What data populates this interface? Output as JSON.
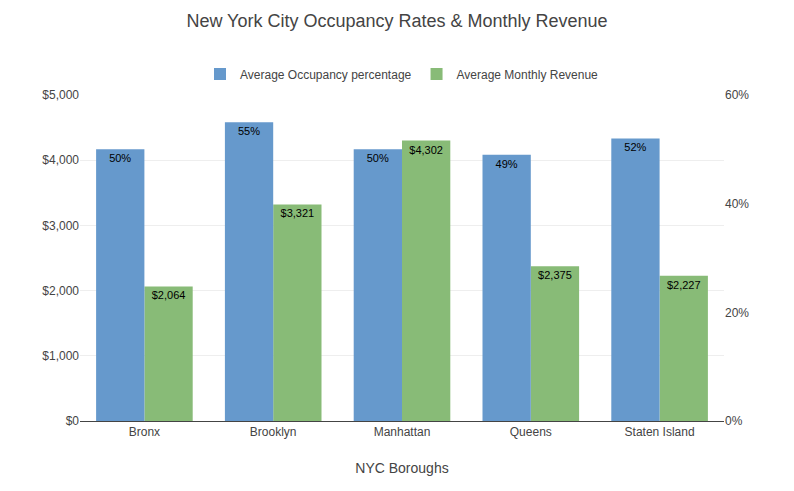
{
  "chart_data": {
    "type": "bar",
    "title": "New York City Occupancy Rates & Monthly Revenue",
    "xlabel": "NYC Boroughs",
    "categories": [
      "Bronx",
      "Brooklyn",
      "Manhattan",
      "Queens",
      "Staten Island"
    ],
    "series": [
      {
        "name": "Average Occupancy percentage",
        "color": "#6699CC",
        "axis": "y2",
        "values": [
          50,
          55,
          50,
          49,
          52
        ],
        "value_labels": [
          "50%",
          "55%",
          "50%",
          "49%",
          "52%"
        ]
      },
      {
        "name": "Average Monthly Revenue",
        "color": "#88BB77",
        "values": [
          2064,
          3321,
          4302,
          2375,
          2227
        ],
        "value_labels": [
          "$2,064",
          "$3,321",
          "$4,302",
          "$2,375",
          "$2,227"
        ]
      }
    ],
    "ylim": [
      0,
      5000
    ],
    "yticks": [
      {
        "value": 0,
        "label": "$0"
      },
      {
        "value": 1000,
        "label": "$1,000"
      },
      {
        "value": 2000,
        "label": "$2,000"
      },
      {
        "value": 3000,
        "label": "$3,000"
      },
      {
        "value": 4000,
        "label": "$4,000"
      },
      {
        "value": 5000,
        "label": "$5,000"
      }
    ],
    "y2lim": [
      0,
      60
    ],
    "y2ticks": [
      {
        "value": 0,
        "label": "0%"
      },
      {
        "value": 20,
        "label": "20%"
      },
      {
        "value": 40,
        "label": "40%"
      },
      {
        "value": 60,
        "label": "60%"
      }
    ],
    "grid": true,
    "legend": "top",
    "data_labels": true
  }
}
